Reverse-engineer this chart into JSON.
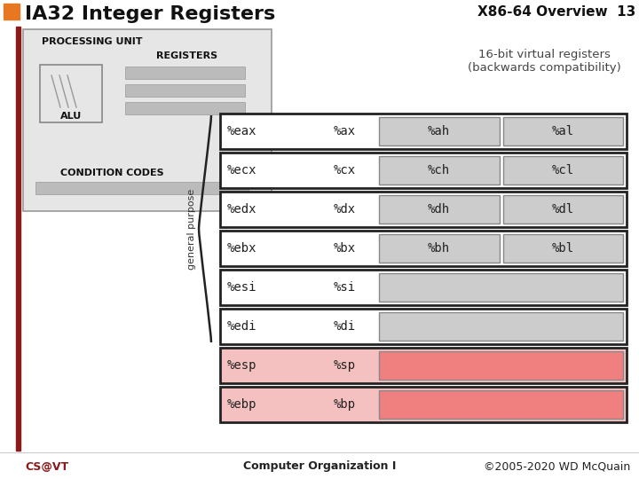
{
  "title": "IA32 Integer Registers",
  "title_right": "X86-64 Overview  13",
  "slide_bg": "#ffffff",
  "header_bar_color": "#8B1A1A",
  "orange_sq": "#e87722",
  "registers": [
    {
      "name": "%eax",
      "bit16": "%ax",
      "high": "%ah",
      "low": "%al",
      "row_bg": "#ffffff",
      "inner_bg": "#cccccc",
      "has_hl": true
    },
    {
      "name": "%ecx",
      "bit16": "%cx",
      "high": "%ch",
      "low": "%cl",
      "row_bg": "#ffffff",
      "inner_bg": "#cccccc",
      "has_hl": true
    },
    {
      "name": "%edx",
      "bit16": "%dx",
      "high": "%dh",
      "low": "%dl",
      "row_bg": "#ffffff",
      "inner_bg": "#cccccc",
      "has_hl": true
    },
    {
      "name": "%ebx",
      "bit16": "%bx",
      "high": "%bh",
      "low": "%bl",
      "row_bg": "#ffffff",
      "inner_bg": "#cccccc",
      "has_hl": true
    },
    {
      "name": "%esi",
      "bit16": "%si",
      "high": null,
      "low": null,
      "row_bg": "#ffffff",
      "inner_bg": "#cccccc",
      "has_hl": false
    },
    {
      "name": "%edi",
      "bit16": "%di",
      "high": null,
      "low": null,
      "row_bg": "#ffffff",
      "inner_bg": "#cccccc",
      "has_hl": false
    },
    {
      "name": "%esp",
      "bit16": "%sp",
      "high": null,
      "low": null,
      "row_bg": "#f5c0c0",
      "inner_bg": "#f08080",
      "has_hl": false
    },
    {
      "name": "%ebp",
      "bit16": "%bp",
      "high": null,
      "low": null,
      "row_bg": "#f5c0c0",
      "inner_bg": "#f08080",
      "has_hl": false
    }
  ],
  "footer_left": "CS@VT",
  "footer_center": "Computer Organization I",
  "footer_right": "©2005-2020 WD McQuain",
  "note_text": "16-bit virtual registers\n(backwards compatibility)"
}
